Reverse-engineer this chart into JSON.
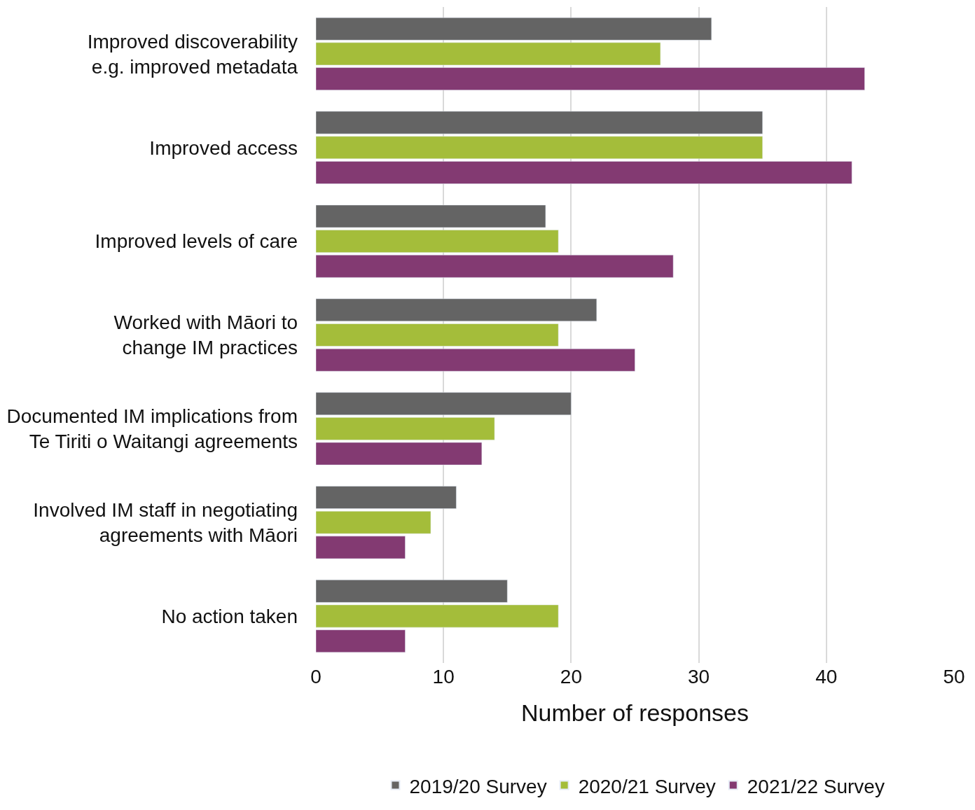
{
  "chart_data": {
    "type": "bar",
    "orientation": "horizontal",
    "xlabel": "Number of responses",
    "categories": [
      "Improved discoverability\ne.g. improved metadata",
      "Improved access",
      "Improved levels of care",
      "Worked with Māori to\nchange IM practices",
      "Documented IM implications from\nTe Tiriti o Waitangi agreements",
      "Involved IM staff in negotiating\nagreements with Māori",
      "No action taken"
    ],
    "series": [
      {
        "name": "2019/20 Survey",
        "color": "#646464",
        "values": [
          31,
          35,
          18,
          22,
          20,
          11,
          15
        ]
      },
      {
        "name": "2020/21 Survey",
        "color": "#a4bd3a",
        "values": [
          27,
          35,
          19,
          19,
          14,
          9,
          19
        ]
      },
      {
        "name": "2021/22 Survey",
        "color": "#833a72",
        "values": [
          43,
          42,
          28,
          25,
          13,
          7,
          7
        ]
      }
    ],
    "xlim": [
      0,
      50
    ],
    "xticks": [
      0,
      10,
      20,
      30,
      40,
      50
    ],
    "grid": "x",
    "legend": "bottom"
  }
}
